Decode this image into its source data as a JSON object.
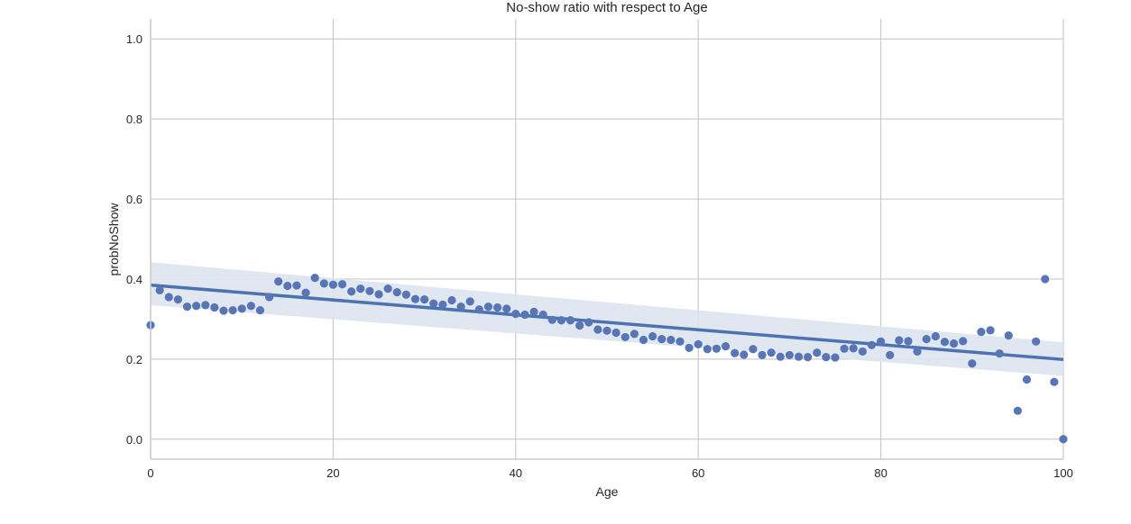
{
  "chart_data": {
    "type": "scatter",
    "title": "No-show ratio with respect to Age",
    "xlabel": "Age",
    "ylabel": "probNoShow",
    "xlim": [
      0,
      100
    ],
    "ylim": [
      -0.05,
      1.05
    ],
    "xticks": [
      0,
      20,
      40,
      60,
      80,
      100
    ],
    "yticks": [
      0.0,
      0.2,
      0.4,
      0.6,
      0.8,
      1.0
    ],
    "ytick_labels": [
      "0.0",
      "0.2",
      "0.4",
      "0.6",
      "0.8",
      "1.0"
    ],
    "grid": true,
    "point_color": "#5875b5",
    "line_color": "#4c72b0",
    "band_color": "#dde4f0",
    "x": [
      0,
      1,
      2,
      3,
      4,
      5,
      6,
      7,
      8,
      9,
      10,
      11,
      12,
      13,
      14,
      15,
      16,
      17,
      18,
      19,
      20,
      21,
      22,
      23,
      24,
      25,
      26,
      27,
      28,
      29,
      30,
      31,
      32,
      33,
      34,
      35,
      36,
      37,
      38,
      39,
      40,
      41,
      42,
      43,
      44,
      45,
      46,
      47,
      48,
      49,
      50,
      51,
      52,
      53,
      54,
      55,
      56,
      57,
      58,
      59,
      60,
      61,
      62,
      63,
      64,
      65,
      66,
      67,
      68,
      69,
      70,
      71,
      72,
      73,
      74,
      75,
      76,
      77,
      78,
      79,
      80,
      81,
      82,
      83,
      84,
      85,
      86,
      87,
      88,
      89,
      90,
      91,
      92,
      93,
      94,
      95,
      96,
      97,
      98,
      99,
      100
    ],
    "y": [
      0.285,
      0.372,
      0.355,
      0.349,
      0.331,
      0.333,
      0.335,
      0.329,
      0.321,
      0.322,
      0.326,
      0.333,
      0.322,
      0.355,
      0.394,
      0.383,
      0.384,
      0.366,
      0.403,
      0.389,
      0.386,
      0.387,
      0.369,
      0.376,
      0.37,
      0.362,
      0.376,
      0.367,
      0.361,
      0.35,
      0.349,
      0.339,
      0.336,
      0.347,
      0.331,
      0.344,
      0.324,
      0.331,
      0.329,
      0.326,
      0.313,
      0.311,
      0.318,
      0.311,
      0.298,
      0.297,
      0.297,
      0.284,
      0.292,
      0.274,
      0.271,
      0.266,
      0.255,
      0.263,
      0.248,
      0.257,
      0.25,
      0.248,
      0.244,
      0.228,
      0.237,
      0.225,
      0.226,
      0.232,
      0.215,
      0.211,
      0.225,
      0.21,
      0.216,
      0.206,
      0.21,
      0.206,
      0.205,
      0.216,
      0.205,
      0.204,
      0.226,
      0.227,
      0.219,
      0.235,
      0.244,
      0.21,
      0.247,
      0.245,
      0.219,
      0.25,
      0.257,
      0.243,
      0.239,
      0.245,
      0.189,
      0.268,
      0.272,
      0.214,
      0.259,
      0.071,
      0.149,
      0.244,
      0.4,
      0.143,
      0.0
    ],
    "regression": {
      "x": [
        0,
        100
      ],
      "y": [
        0.385,
        0.199
      ],
      "ci_lower": [
        0.335,
        0.158
      ],
      "ci_upper": [
        0.442,
        0.242
      ]
    }
  }
}
